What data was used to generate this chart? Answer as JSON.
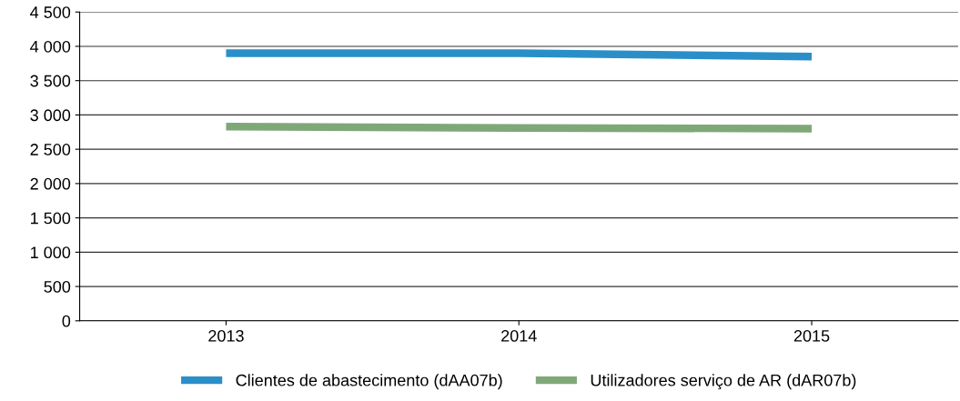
{
  "chart_data": {
    "type": "line",
    "categories": [
      "2013",
      "2014",
      "2015"
    ],
    "series": [
      {
        "name": "Clientes de abastecimento (dAA07b)",
        "color": "#2a8fc8",
        "values": [
          3900,
          3900,
          3850
        ]
      },
      {
        "name": "Utilizadores serviço de AR (dAR07b)",
        "color": "#7fa878",
        "values": [
          2830,
          2810,
          2800
        ]
      }
    ],
    "ylim": [
      0,
      4500
    ],
    "yticks": [
      {
        "value": 0,
        "label": "0"
      },
      {
        "value": 500,
        "label": "500"
      },
      {
        "value": 1000,
        "label": "1 000"
      },
      {
        "value": 1500,
        "label": "1 500"
      },
      {
        "value": 2000,
        "label": "2 000"
      },
      {
        "value": 2500,
        "label": "2 500"
      },
      {
        "value": 3000,
        "label": "3 000"
      },
      {
        "value": 3500,
        "label": "3 500"
      },
      {
        "value": 4000,
        "label": "4 000"
      },
      {
        "value": 4500,
        "label": "4 500"
      }
    ],
    "grid": "y",
    "legend": "bottom",
    "marker": "none",
    "line_style": "solid"
  }
}
